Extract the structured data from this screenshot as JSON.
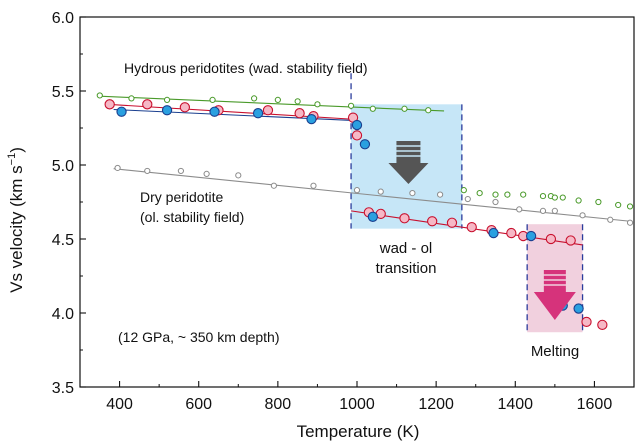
{
  "chart_data": {
    "type": "scatter",
    "xlabel": "Temperature (K)",
    "ylabel": "Vs velocity (km s",
    "ylabel_sup": "−1",
    "ylabel_close": ")",
    "xlim": [
      300,
      1700
    ],
    "ylim": [
      3.5,
      6.0
    ],
    "xticks": [
      400,
      600,
      800,
      1000,
      1200,
      1400,
      1600
    ],
    "yticks": [
      3.5,
      4.0,
      4.5,
      5.0,
      5.5,
      6.0
    ],
    "ytick_labels": [
      "3.5",
      "4.0",
      "4.5",
      "5.0",
      "5.5",
      "6.0"
    ],
    "colors": {
      "hydrous": "#4a9a2a",
      "dry": "#8c8c8c",
      "pink_edge": "#c8102e",
      "pink_fill": "#f6b8c6",
      "blue_edge": "#1a3f8f",
      "blue_fill": "#2aa0e0",
      "wad_box": "#c6e6f7",
      "melt_box": "#f1d0de",
      "dashed": "#2b3d9c",
      "gray_arrow": "#555555",
      "pink_arrow": "#d6337b",
      "wad_text": "#2b3d9c",
      "melt_text": "#c8102e"
    },
    "series": [
      {
        "marker": "open-small-green",
        "x": [
          350,
          430,
          520,
          635,
          740,
          800,
          850,
          900,
          985,
          1040,
          1120,
          1180,
          1270,
          1310,
          1350,
          1380,
          1420,
          1470,
          1490,
          1500,
          1520,
          1560,
          1610,
          1660,
          1690
        ],
        "y": [
          5.47,
          5.45,
          5.44,
          5.44,
          5.45,
          5.44,
          5.43,
          5.41,
          5.4,
          5.38,
          5.38,
          5.37,
          4.83,
          4.81,
          4.8,
          4.8,
          4.8,
          4.79,
          4.79,
          4.78,
          4.78,
          4.76,
          4.75,
          4.73,
          4.72
        ],
        "fit": [
          [
            350,
            5.465
          ],
          [
            1220,
            5.365
          ]
        ]
      },
      {
        "marker": "open-small-gray",
        "x": [
          395,
          470,
          555,
          620,
          700,
          790,
          890,
          1000,
          1060,
          1140,
          1210,
          1280,
          1350,
          1410,
          1470,
          1500,
          1570,
          1640,
          1690
        ],
        "y": [
          4.98,
          4.96,
          4.96,
          4.94,
          4.93,
          4.86,
          4.86,
          4.83,
          4.82,
          4.81,
          4.8,
          4.77,
          4.75,
          4.7,
          4.69,
          4.69,
          4.66,
          4.63,
          4.61
        ],
        "fit": [
          [
            385,
            4.975
          ],
          [
            1690,
            4.62
          ]
        ]
      },
      {
        "marker": "pink",
        "x": [
          375,
          470,
          565,
          650,
          775,
          855,
          890,
          990,
          1000,
          1030,
          1060,
          1120,
          1190,
          1240,
          1290,
          1340,
          1390,
          1420,
          1490,
          1540,
          1580,
          1620
        ],
        "y": [
          5.41,
          5.41,
          5.39,
          5.37,
          5.37,
          5.35,
          5.33,
          5.32,
          5.2,
          4.68,
          4.67,
          4.64,
          4.62,
          4.61,
          4.58,
          4.56,
          4.54,
          4.52,
          4.5,
          4.49,
          3.94,
          3.92
        ],
        "fit": [
          [
            370,
            5.41
          ],
          [
            985,
            5.31
          ]
        ],
        "fit2": [
          [
            985,
            4.69
          ],
          [
            1570,
            4.46
          ]
        ]
      },
      {
        "marker": "blue",
        "x": [
          405,
          520,
          640,
          750,
          885,
          1000,
          1020,
          1040,
          1345,
          1440,
          1500,
          1520,
          1560
        ],
        "y": [
          5.36,
          5.37,
          5.36,
          5.35,
          5.31,
          5.27,
          5.14,
          4.65,
          4.54,
          4.52,
          4.05,
          4.05,
          4.03
        ],
        "fit": [
          [
            385,
            5.375
          ],
          [
            995,
            5.3
          ]
        ]
      }
    ],
    "annotations": {
      "hydrous": "Hydrous peridotites (wad. stability field)",
      "dry_line1": "Dry peridotite",
      "dry_line2": "(ol. stability field)",
      "condition": "(12 GPa, ~ 350 km depth)",
      "wad_line1": "wad - ol",
      "wad_line2": "transition",
      "melting": "Melting"
    }
  }
}
